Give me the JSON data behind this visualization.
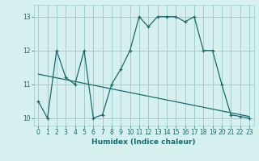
{
  "x": [
    0,
    1,
    2,
    3,
    4,
    5,
    6,
    7,
    8,
    9,
    10,
    11,
    12,
    13,
    14,
    15,
    16,
    17,
    18,
    19,
    20,
    21,
    22,
    23
  ],
  "y": [
    10.5,
    10.0,
    12.0,
    11.2,
    11.0,
    12.0,
    10.0,
    10.1,
    11.0,
    11.45,
    12.0,
    13.0,
    12.7,
    13.0,
    13.0,
    13.0,
    12.85,
    13.0,
    12.0,
    12.0,
    11.0,
    10.1,
    10.05,
    10.0
  ],
  "trend_x": [
    0,
    23
  ],
  "trend_y": [
    11.3,
    10.05
  ],
  "line_color": "#1a6b6b",
  "bg_color": "#d6f0f0",
  "grid_color": "#9ecece",
  "xlabel": "Humidex (Indice chaleur)",
  "xlim": [
    -0.5,
    23.5
  ],
  "ylim": [
    9.78,
    13.35
  ],
  "yticks": [
    10,
    11,
    12,
    13
  ],
  "xticks": [
    0,
    1,
    2,
    3,
    4,
    5,
    6,
    7,
    8,
    9,
    10,
    11,
    12,
    13,
    14,
    15,
    16,
    17,
    18,
    19,
    20,
    21,
    22,
    23
  ]
}
